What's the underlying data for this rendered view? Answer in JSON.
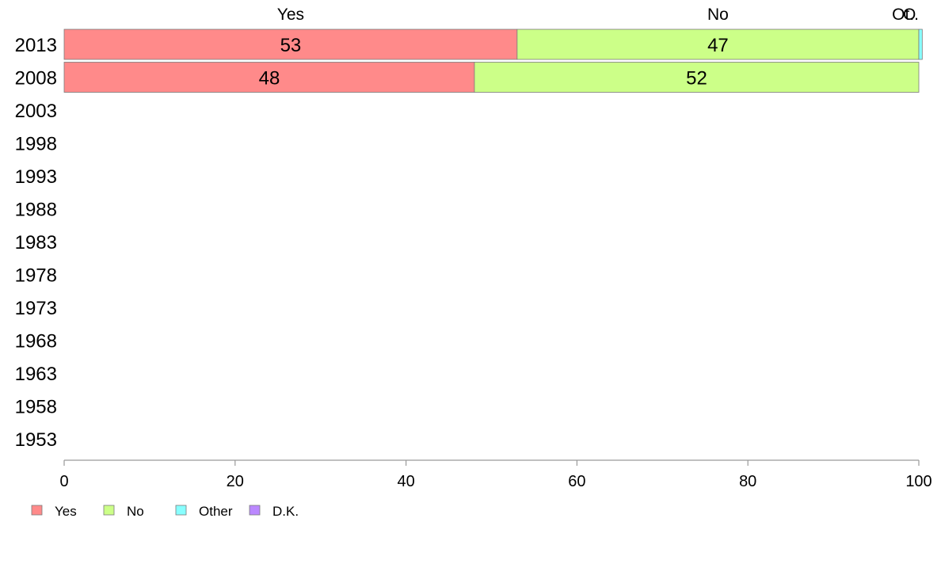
{
  "chart_data": {
    "type": "bar",
    "orientation": "horizontal",
    "stacked": true,
    "categories": [
      "2013",
      "2008",
      "2003",
      "1998",
      "1993",
      "1988",
      "1983",
      "1978",
      "1973",
      "1968",
      "1963",
      "1958",
      "1953"
    ],
    "series": [
      {
        "name": "Yes",
        "color": "#ff8a8a",
        "values": [
          53,
          48,
          null,
          null,
          null,
          null,
          null,
          null,
          null,
          null,
          null,
          null,
          null
        ]
      },
      {
        "name": "No",
        "color": "#ccff88",
        "values": [
          47,
          52,
          null,
          null,
          null,
          null,
          null,
          null,
          null,
          null,
          null,
          null,
          null
        ]
      },
      {
        "name": "Other",
        "color": "#88ffff",
        "values": [
          0.4,
          0,
          null,
          null,
          null,
          null,
          null,
          null,
          null,
          null,
          null,
          null,
          null
        ]
      },
      {
        "name": "D.K.",
        "color": "#bb88ff",
        "values": [
          0,
          0,
          null,
          null,
          null,
          null,
          null,
          null,
          null,
          null,
          null,
          null,
          null
        ]
      }
    ],
    "data_labels": [
      [
        "53",
        "47",
        "",
        ""
      ],
      [
        "48",
        "52",
        "",
        ""
      ]
    ],
    "top_labels": [
      "Yes",
      "No",
      "O",
      "Ot.."
    ],
    "x_ticks": [
      0,
      20,
      40,
      60,
      80,
      100
    ],
    "xlim": [
      0,
      100
    ],
    "grid": false,
    "legend_position": "bottom-left"
  }
}
